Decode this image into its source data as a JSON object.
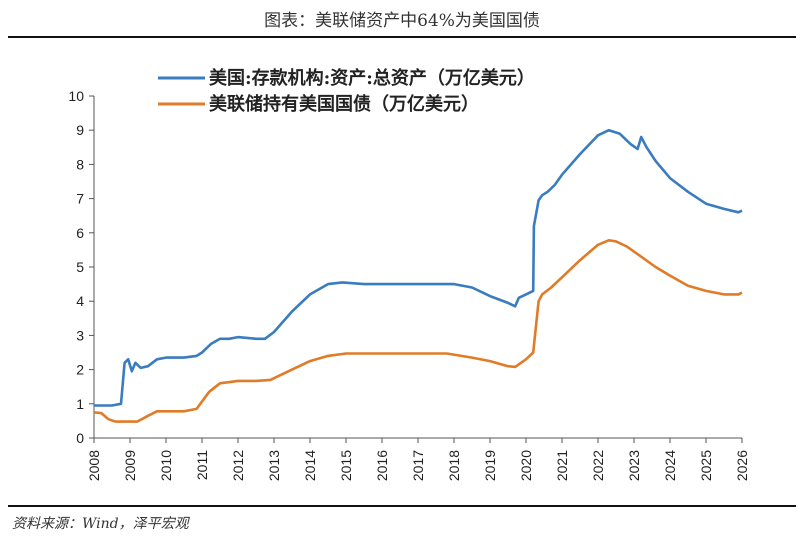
{
  "header": {
    "title": "图表：美联储资产中64%为美国国债"
  },
  "footer": {
    "source": "资料来源：Wind，泽平宏观"
  },
  "chart_data": {
    "type": "line",
    "title": "图表：美联储资产中64%为美国国债",
    "xlabel": "",
    "ylabel": "",
    "xlim": [
      2008,
      2026
    ],
    "ylim": [
      0,
      10
    ],
    "x_ticks": [
      "2008",
      "2009",
      "2010",
      "2011",
      "2012",
      "2013",
      "2014",
      "2015",
      "2016",
      "2017",
      "2018",
      "2019",
      "2020",
      "2021",
      "2022",
      "2023",
      "2024",
      "2025",
      "2026"
    ],
    "y_ticks": [
      "0",
      "1",
      "2",
      "3",
      "4",
      "5",
      "6",
      "7",
      "8",
      "9",
      "10"
    ],
    "legend_position": "top-left",
    "series": [
      {
        "name": "美国:存款机构:资产:总资产（万亿美元）",
        "color": "#3a7cc0",
        "x": [
          2008.0,
          2008.5,
          2008.75,
          2008.85,
          2008.95,
          2009.05,
          2009.15,
          2009.3,
          2009.5,
          2009.75,
          2010.0,
          2010.5,
          2010.85,
          2011.0,
          2011.25,
          2011.5,
          2011.75,
          2012.0,
          2012.5,
          2012.75,
          2013.0,
          2013.5,
          2014.0,
          2014.5,
          2014.9,
          2015.5,
          2016.5,
          2017.5,
          2018.0,
          2018.5,
          2019.0,
          2019.5,
          2019.7,
          2019.8,
          2020.0,
          2020.2,
          2020.22,
          2020.35,
          2020.45,
          2020.6,
          2020.8,
          2021.0,
          2021.5,
          2022.0,
          2022.3,
          2022.6,
          2022.9,
          2023.1,
          2023.2,
          2023.25,
          2023.35,
          2023.6,
          2024.0,
          2024.5,
          2025.0,
          2025.5,
          2025.9,
          2026.0
        ],
        "values": [
          0.95,
          0.95,
          1.0,
          2.2,
          2.3,
          1.95,
          2.2,
          2.05,
          2.1,
          2.3,
          2.35,
          2.35,
          2.4,
          2.5,
          2.75,
          2.9,
          2.9,
          2.95,
          2.9,
          2.9,
          3.1,
          3.7,
          4.2,
          4.5,
          4.55,
          4.5,
          4.5,
          4.5,
          4.5,
          4.4,
          4.15,
          3.95,
          3.85,
          4.1,
          4.2,
          4.3,
          6.2,
          6.95,
          7.1,
          7.2,
          7.4,
          7.7,
          8.3,
          8.85,
          9.0,
          8.9,
          8.6,
          8.45,
          8.8,
          8.7,
          8.5,
          8.1,
          7.6,
          7.2,
          6.85,
          6.7,
          6.6,
          6.65
        ]
      },
      {
        "name": "美联储持有美国国债（万亿美元）",
        "color": "#e07b28",
        "x": [
          2008.0,
          2008.2,
          2008.4,
          2008.6,
          2009.0,
          2009.2,
          2009.5,
          2009.75,
          2010.0,
          2010.5,
          2010.85,
          2011.2,
          2011.5,
          2012.0,
          2012.5,
          2012.9,
          2013.5,
          2014.0,
          2014.5,
          2015.0,
          2016.0,
          2017.0,
          2017.8,
          2018.5,
          2019.0,
          2019.5,
          2019.7,
          2020.0,
          2020.2,
          2020.35,
          2020.45,
          2020.7,
          2021.0,
          2021.5,
          2022.0,
          2022.3,
          2022.5,
          2022.8,
          2023.2,
          2023.6,
          2024.0,
          2024.5,
          2025.0,
          2025.5,
          2025.9,
          2026.0
        ],
        "values": [
          0.75,
          0.73,
          0.55,
          0.48,
          0.48,
          0.48,
          0.65,
          0.78,
          0.78,
          0.78,
          0.85,
          1.35,
          1.6,
          1.67,
          1.67,
          1.7,
          2.0,
          2.25,
          2.4,
          2.47,
          2.47,
          2.47,
          2.47,
          2.35,
          2.25,
          2.1,
          2.08,
          2.3,
          2.5,
          4.0,
          4.2,
          4.4,
          4.7,
          5.2,
          5.65,
          5.78,
          5.75,
          5.6,
          5.3,
          5.0,
          4.75,
          4.45,
          4.3,
          4.2,
          4.2,
          4.25
        ]
      }
    ]
  }
}
